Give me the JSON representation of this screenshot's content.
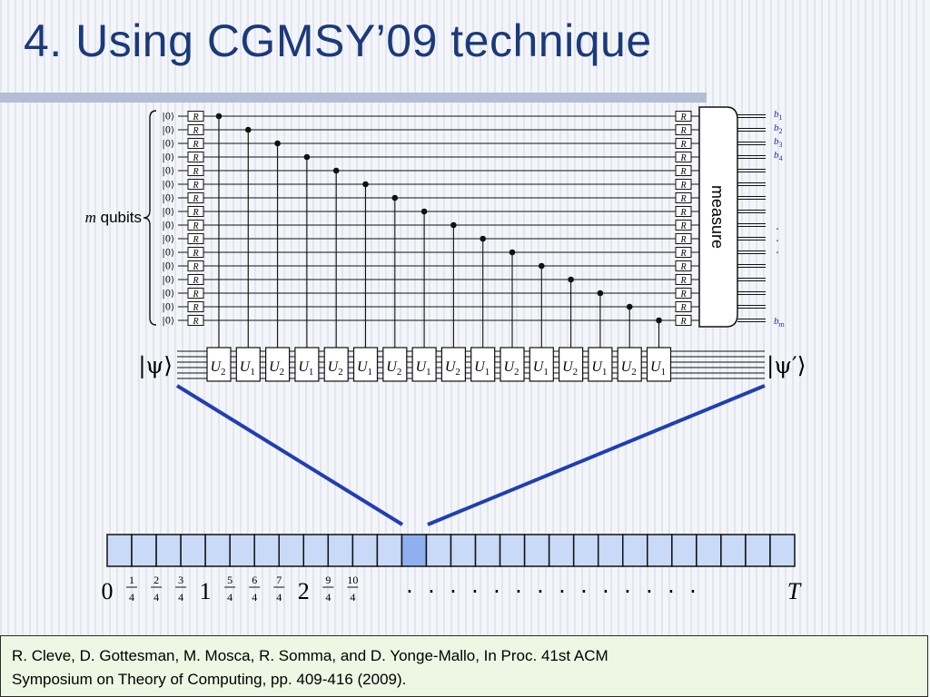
{
  "slide": {
    "title": "4. Using CGMSY’09 technique",
    "citation": [
      "R. Cleve, D. Gottesman, M. Mosca, R. Somma, and D. Yonge-Mallo, In Proc. 41st ACM",
      "Symposium on Theory of Computing, pp. 409-416 (2009)."
    ]
  },
  "colors": {
    "title": "#1b3a7a",
    "accent_line": "#1f3fb3",
    "timeline_cell": "#c8daf7",
    "timeline_highlight": "#8fb0ef",
    "citation_bg": "#edf7e4",
    "output_label": "#1a2fa6"
  },
  "circuit": {
    "qubit_count": 16,
    "init_state": "|0⟩",
    "gate_label": "R",
    "register_label_var": "m",
    "register_label_text": "qubits",
    "measure_label": "measure",
    "output_labels": [
      "b",
      "b",
      "b",
      "b"
    ],
    "output_subscripts": [
      "1",
      "2",
      "3",
      "4"
    ],
    "last_output_label": "b",
    "last_output_subscript": "m",
    "output_ellipsis": "·",
    "control_count": 16,
    "input_state": "|ψ⟩",
    "output_state": "|ψ′⟩",
    "unitary_sequence": [
      {
        "letter": "U",
        "sub": "2"
      },
      {
        "letter": "U",
        "sub": "1"
      },
      {
        "letter": "U",
        "sub": "2"
      },
      {
        "letter": "U",
        "sub": "1"
      },
      {
        "letter": "U",
        "sub": "2"
      },
      {
        "letter": "U",
        "sub": "1"
      },
      {
        "letter": "U",
        "sub": "2"
      },
      {
        "letter": "U",
        "sub": "1"
      },
      {
        "letter": "U",
        "sub": "2"
      },
      {
        "letter": "U",
        "sub": "1"
      },
      {
        "letter": "U",
        "sub": "2"
      },
      {
        "letter": "U",
        "sub": "1"
      },
      {
        "letter": "U",
        "sub": "2"
      },
      {
        "letter": "U",
        "sub": "1"
      },
      {
        "letter": "U",
        "sub": "2"
      },
      {
        "letter": "U",
        "sub": "1"
      }
    ]
  },
  "timeline": {
    "cell_count": 28,
    "highlight_index": 12,
    "labels": [
      {
        "kind": "int",
        "text": "0"
      },
      {
        "kind": "frac",
        "num": "1",
        "den": "4"
      },
      {
        "kind": "frac",
        "num": "2",
        "den": "4"
      },
      {
        "kind": "frac",
        "num": "3",
        "den": "4"
      },
      {
        "kind": "int",
        "text": "1"
      },
      {
        "kind": "frac",
        "num": "5",
        "den": "4"
      },
      {
        "kind": "frac",
        "num": "6",
        "den": "4"
      },
      {
        "kind": "frac",
        "num": "7",
        "den": "4"
      },
      {
        "kind": "int",
        "text": "2"
      },
      {
        "kind": "frac",
        "num": "9",
        "den": "4"
      },
      {
        "kind": "frac",
        "num": "10",
        "den": "4"
      }
    ],
    "ellipsis_dot": "·",
    "ellipsis_count": 14,
    "end_label": "T"
  }
}
